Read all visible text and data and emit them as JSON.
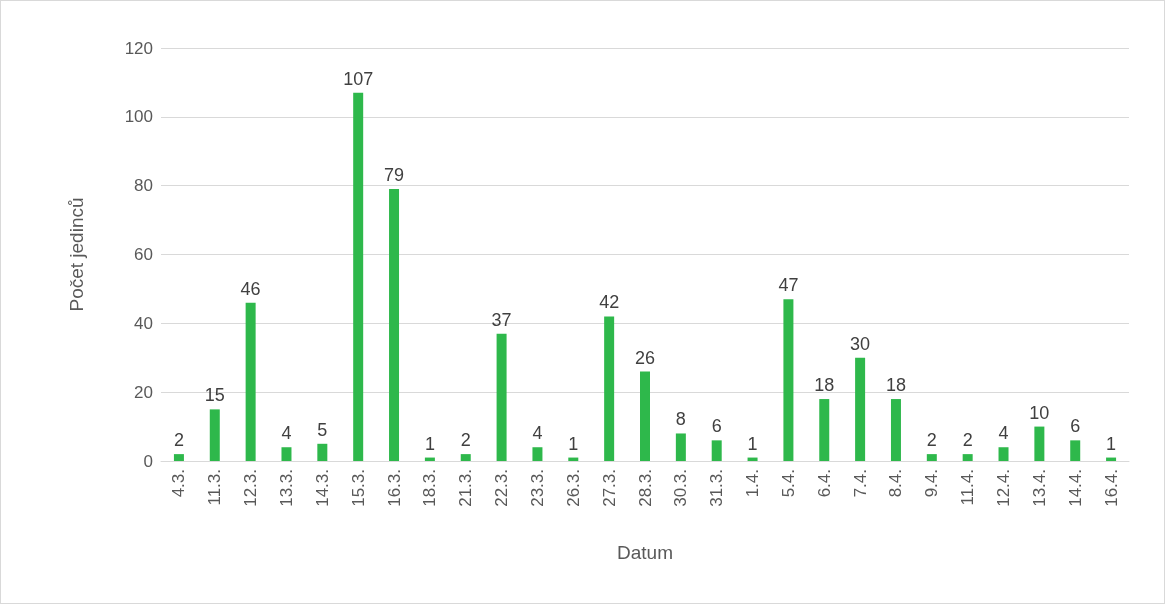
{
  "chart_data": {
    "type": "bar",
    "xlabel": "Datum",
    "ylabel": "Počet jedinců",
    "categories": [
      "4.3.",
      "11.3.",
      "12.3.",
      "13.3.",
      "14.3.",
      "15.3.",
      "16.3.",
      "18.3.",
      "21.3.",
      "22.3.",
      "23.3.",
      "26.3.",
      "27.3.",
      "28.3.",
      "30.3.",
      "31.3.",
      "1.4.",
      "5.4.",
      "6.4.",
      "7.4.",
      "8.4.",
      "9.4.",
      "11.4.",
      "12.4.",
      "13.4.",
      "14.4.",
      "16.4."
    ],
    "values": [
      2,
      15,
      46,
      4,
      5,
      107,
      79,
      1,
      2,
      37,
      4,
      1,
      42,
      26,
      8,
      6,
      1,
      47,
      18,
      30,
      18,
      2,
      2,
      4,
      10,
      6,
      1
    ],
    "color": "#2eb84b",
    "ylim": [
      0,
      120
    ],
    "yticks": [
      0,
      20,
      40,
      60,
      80,
      100,
      120
    ],
    "grid": "y",
    "data_labels": true
  }
}
